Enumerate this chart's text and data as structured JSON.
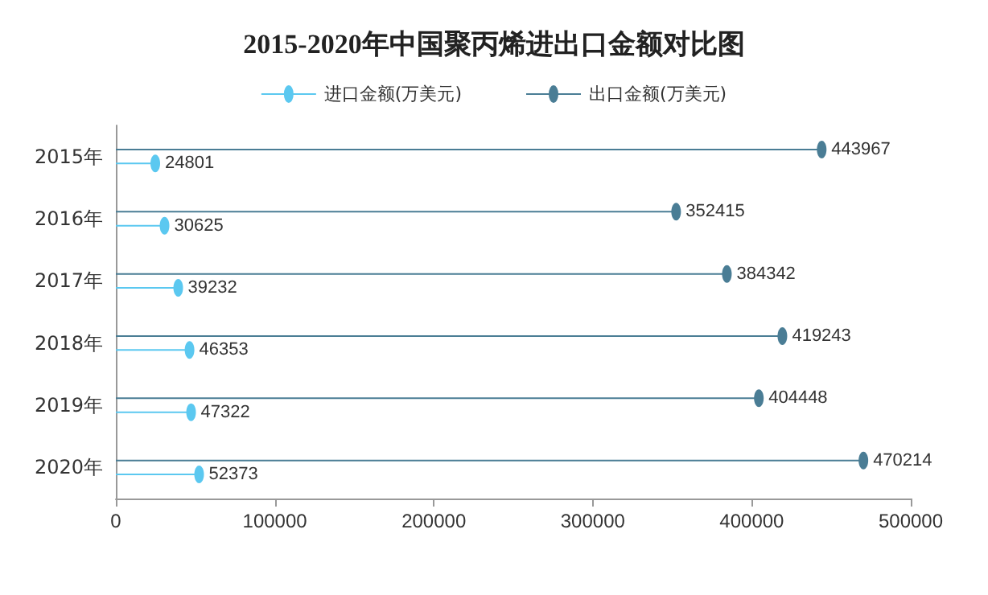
{
  "chart_data": {
    "type": "lollipop",
    "orientation": "horizontal",
    "title": "2015-2020年中国聚丙烯进出口金额对比图",
    "categories": [
      "2015年",
      "2016年",
      "2017年",
      "2018年",
      "2019年",
      "2020年"
    ],
    "series": [
      {
        "name": "进口金额(万美元)",
        "color": "#5bc8f0",
        "values": [
          24801,
          30625,
          39232,
          46353,
          47322,
          52373
        ]
      },
      {
        "name": "出口金额(万美元)",
        "color": "#4a7d95",
        "values": [
          443967,
          352415,
          384342,
          419243,
          404448,
          470214
        ]
      }
    ],
    "xlim": [
      0,
      500000
    ],
    "xticks": [
      0,
      100000,
      200000,
      300000,
      400000,
      500000
    ],
    "data_labels": true,
    "legend": "top",
    "grid": false,
    "marker": "circle"
  }
}
